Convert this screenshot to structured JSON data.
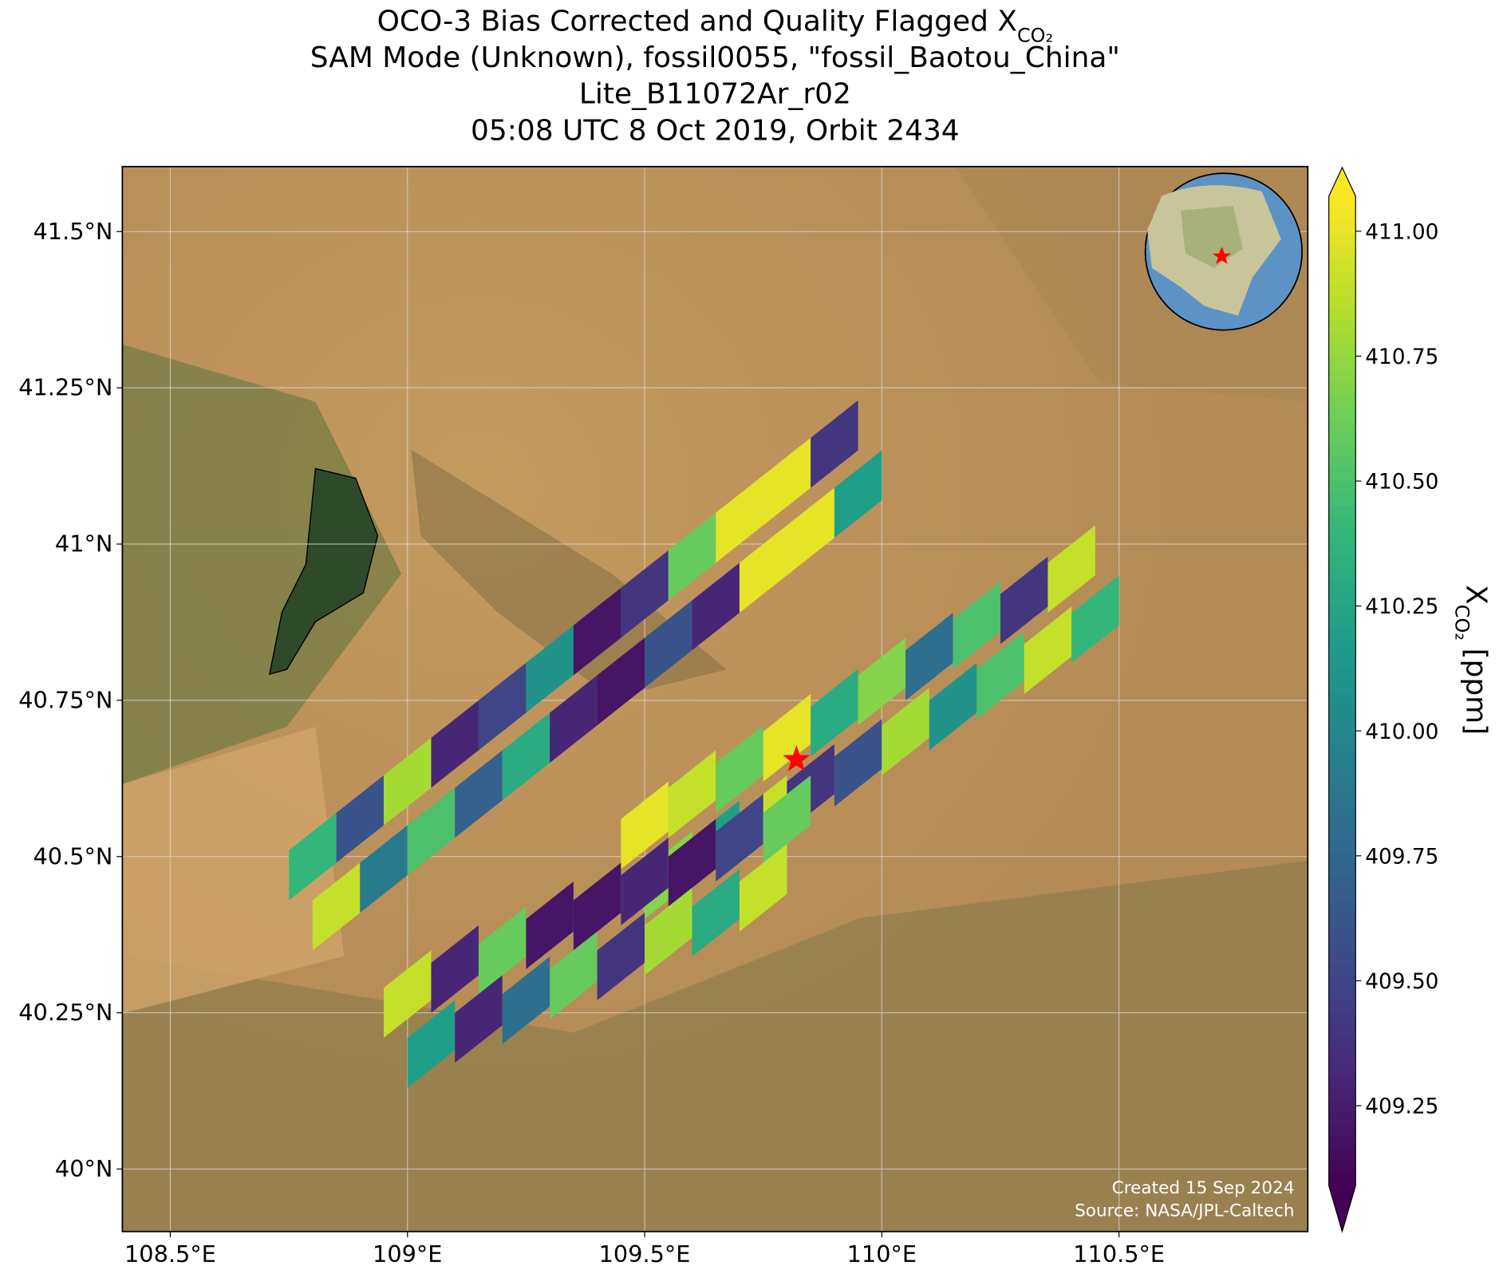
{
  "chart_data": {
    "type": "map",
    "title": [
      "OCO-3 Bias Corrected and Quality Flagged X",
      "SAM Mode (Unknown), fossil0055, \"fossil_Baotou_China\"",
      "Lite_B11072Ar_r02",
      "05:08 UTC 8 Oct 2019, Orbit 2434"
    ],
    "title_subscript": "CO₂",
    "xlim": [
      108.399,
      110.898
    ],
    "ylim": [
      39.9,
      41.604
    ],
    "xticks": [
      {
        "value": 108.5,
        "label": "108.5°E"
      },
      {
        "value": 109,
        "label": "109°E"
      },
      {
        "value": 109.5,
        "label": "109.5°E"
      },
      {
        "value": 110,
        "label": "110°E"
      },
      {
        "value": 110.5,
        "label": "110.5°E"
      }
    ],
    "yticks": [
      {
        "value": 40,
        "label": "40°N"
      },
      {
        "value": 40.25,
        "label": "40.25°N"
      },
      {
        "value": 40.5,
        "label": "40.5°N"
      },
      {
        "value": 40.75,
        "label": "40.75°N"
      },
      {
        "value": 41,
        "label": "41°N"
      },
      {
        "value": 41.25,
        "label": "41.25°N"
      },
      {
        "value": 41.5,
        "label": "41.5°N"
      }
    ],
    "grid": true,
    "clim": [
      409.09,
      411.07
    ],
    "colorbar_ticks": [
      {
        "value": 409.25,
        "label": "409.25"
      },
      {
        "value": 409.5,
        "label": "409.50"
      },
      {
        "value": 409.75,
        "label": "409.75"
      },
      {
        "value": 410,
        "label": "410.00"
      },
      {
        "value": 410.25,
        "label": "410.25"
      },
      {
        "value": 410.5,
        "label": "410.50"
      },
      {
        "value": 410.75,
        "label": "410.75"
      },
      {
        "value": 411,
        "label": "411.00"
      }
    ],
    "colorbar_label": [
      "X",
      "CO₂",
      "[ppm]"
    ],
    "colormap": [
      "#440154",
      "#482878",
      "#3e4989",
      "#31688e",
      "#26828e",
      "#1f9e89",
      "#35b779",
      "#6ece58",
      "#b5de2b",
      "#fde725"
    ],
    "site": {
      "lon": 109.82,
      "lat": 40.655,
      "color": "#ff0000"
    },
    "soundings": {
      "lon": [
        108.8,
        108.9,
        109.0,
        109.1,
        109.2,
        109.3,
        109.4,
        109.5,
        109.6,
        109.7,
        109.8,
        109.9,
        108.85,
        108.95,
        109.05,
        109.15,
        109.25,
        109.35,
        109.45,
        109.55,
        109.65,
        109.75,
        109.85,
        109.95,
        109.5,
        109.6,
        109.7,
        109.8,
        109.9,
        110.0,
        110.1,
        110.2,
        110.3,
        110.4,
        109.55,
        109.65,
        109.75,
        109.85,
        109.95,
        110.05,
        110.15,
        110.25,
        110.35,
        110.45,
        109.0,
        109.1,
        109.2,
        109.3,
        109.4,
        109.5,
        109.6,
        109.7,
        109.8,
        109.05,
        109.15,
        109.25,
        109.35,
        109.45,
        109.55,
        109.65,
        109.75
      ],
      "lat": [
        40.5,
        40.56,
        40.62,
        40.68,
        40.74,
        40.8,
        40.86,
        40.92,
        40.98,
        41.04,
        41.1,
        41.16,
        40.42,
        40.48,
        40.54,
        40.6,
        40.66,
        40.72,
        40.78,
        40.84,
        40.9,
        40.96,
        41.02,
        41.08,
        40.55,
        40.6,
        40.64,
        40.69,
        40.73,
        40.78,
        40.82,
        40.87,
        40.91,
        40.96,
        40.47,
        40.52,
        40.56,
        40.61,
        40.65,
        40.7,
        40.74,
        40.79,
        40.83,
        40.88,
        40.28,
        40.32,
        40.35,
        40.39,
        40.42,
        40.46,
        40.49,
        40.53,
        40.56,
        40.2,
        40.24,
        40.27,
        40.31,
        40.34,
        40.38,
        40.41,
        40.45
      ],
      "xco2": [
        410.4,
        409.6,
        410.8,
        409.3,
        409.5,
        410.1,
        409.2,
        409.4,
        410.6,
        411.0,
        411.0,
        409.4,
        410.9,
        409.9,
        410.5,
        409.7,
        410.3,
        409.3,
        409.2,
        409.6,
        409.3,
        411.0,
        411.0,
        410.2,
        411.0,
        410.9,
        410.6,
        411.0,
        410.3,
        410.7,
        409.8,
        410.5,
        409.4,
        410.9,
        410.7,
        410.2,
        410.9,
        409.4,
        409.6,
        410.8,
        410.1,
        410.5,
        410.9,
        410.4,
        410.9,
        409.3,
        410.6,
        409.2,
        409.2,
        409.3,
        409.2,
        409.5,
        410.6,
        410.2,
        409.3,
        409.8,
        410.6,
        409.4,
        410.8,
        410.3,
        410.9
      ]
    },
    "credit": [
      "Created 15 Sep 2024",
      "Source: NASA/JPL-Caltech"
    ]
  }
}
